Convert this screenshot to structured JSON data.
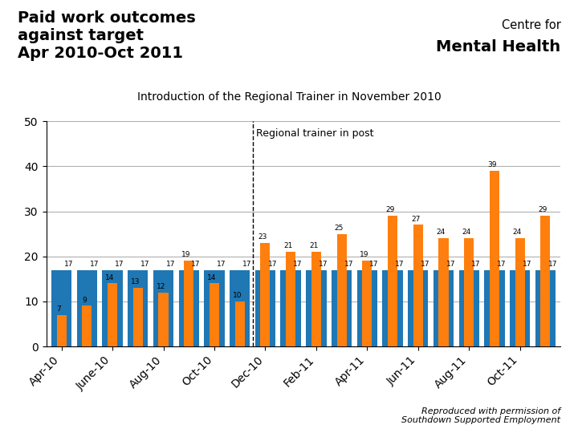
{
  "chart_data": {
    "type": "bar",
    "title": "Paid work outcomes\nagainst target\nApr 2010-Oct 2011",
    "subtitle": "Introduction of the Regional Trainer in November 2010",
    "categories": [
      "Apr-10",
      null,
      "June-10",
      null,
      "Aug-10",
      null,
      "Oct-10",
      null,
      "Dec-10",
      null,
      "Feb-11",
      null,
      "Apr-11",
      null,
      "Jun-11",
      null,
      "Aug-11",
      null,
      "Oct-11",
      null
    ],
    "series": [
      {
        "values": [
          17,
          17,
          17,
          17,
          17,
          17,
          17,
          17,
          17,
          17,
          17,
          17,
          17,
          17,
          17,
          17,
          17,
          17,
          17,
          17
        ]
      },
      {
        "values": [
          7,
          9,
          14,
          13,
          12,
          19,
          14,
          10,
          23,
          21,
          21,
          25,
          19,
          29,
          27,
          24,
          24,
          39,
          24,
          29
        ]
      }
    ],
    "ylim": [
      0,
      50
    ],
    "yticks": [
      0,
      10,
      20,
      30,
      40,
      50
    ],
    "grid": true,
    "data_labels": true,
    "annotations": [
      {
        "text": "Regional trainer in post",
        "x": 7.5
      },
      {
        "text": "Centre for"
      },
      {
        "text": "Mental Health"
      }
    ],
    "source": "Reproduced with permission of\nSouthdown Supported Employment"
  }
}
